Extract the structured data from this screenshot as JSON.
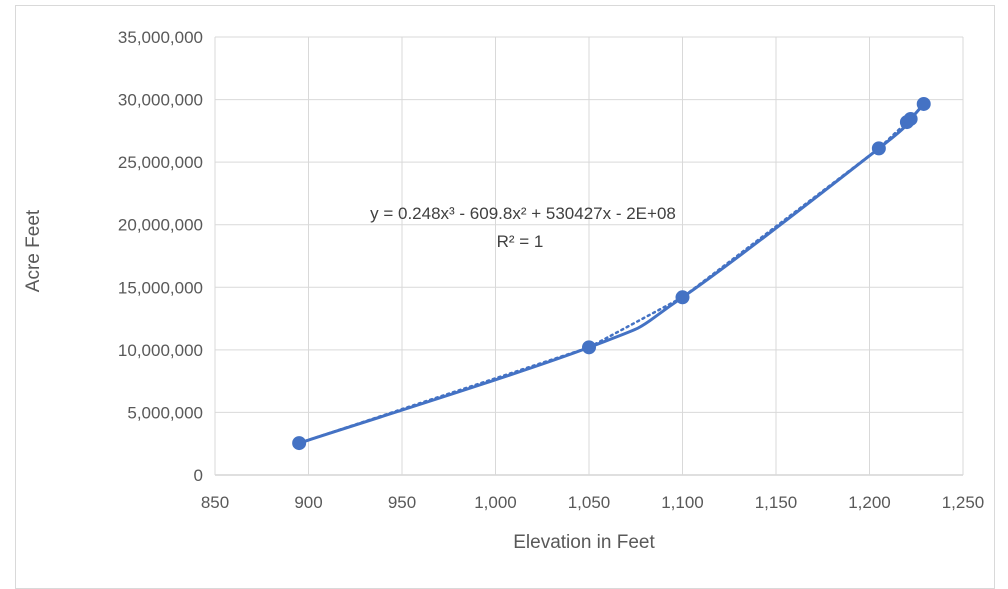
{
  "chart_data": {
    "type": "scatter",
    "title": "",
    "xlabel": "Elevation in Feet",
    "ylabel": "Acre Feet",
    "xlim": [
      850,
      1250
    ],
    "ylim": [
      0,
      35000000
    ],
    "x_ticks": [
      "850",
      "900",
      "950",
      "1,000",
      "1,050",
      "1,100",
      "1,150",
      "1,200",
      "1,250"
    ],
    "y_ticks": [
      "0",
      "5,000,000",
      "10,000,000",
      "15,000,000",
      "20,000,000",
      "25,000,000",
      "30,000,000",
      "35,000,000"
    ],
    "grid": "vertical and horizontal major gridlines",
    "legend": "none",
    "series": [
      {
        "points": [
          {
            "x": 895,
            "y": 2550000
          },
          {
            "x": 1050,
            "y": 10200000
          },
          {
            "x": 1100,
            "y": 14200000
          },
          {
            "x": 1205,
            "y": 26100000
          },
          {
            "x": 1220,
            "y": 28200000
          },
          {
            "x": 1222,
            "y": 28450000
          },
          {
            "x": 1229,
            "y": 29650000
          }
        ],
        "color": "#4472c4",
        "line": "smoothed solid line with circular markers"
      }
    ],
    "trendline": {
      "kind": "polynomial order 3",
      "style": "dotted",
      "color": "#4472c4",
      "coefficients": [
        0.248,
        -609.8,
        530427,
        -200000000
      ],
      "equation": "y = 0.248x³ - 609.8x² + 530427x - 2E+08",
      "r_squared": "R² = 1"
    }
  }
}
